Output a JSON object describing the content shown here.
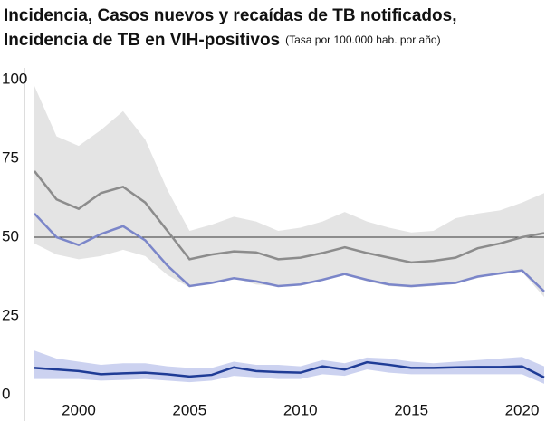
{
  "chart_data": {
    "type": "line",
    "title": [
      "Incidencia, Casos nuevos y recaídas de TB notificados,",
      "Incidencia de TB en VIH-positivos"
    ],
    "subtitle": "(Tasa por 100.000 hab. por año)",
    "x": [
      1998,
      1999,
      2000,
      2001,
      2002,
      2003,
      2004,
      2005,
      2006,
      2007,
      2008,
      2009,
      2010,
      2011,
      2012,
      2013,
      2014,
      2015,
      2016,
      2017,
      2018,
      2019,
      2020,
      2021
    ],
    "xlim": [
      1998,
      2021
    ],
    "xticks": [
      2000,
      2005,
      2010,
      2015,
      2020
    ],
    "ylim": [
      0,
      100
    ],
    "yticks": [
      0,
      25,
      50,
      75,
      100
    ],
    "hline": 50,
    "series": [
      {
        "color": "#8c8c8c",
        "band_color": "#e4e4e4",
        "values": [
          71,
          62,
          59,
          64,
          66,
          61,
          52,
          43,
          44.5,
          45.5,
          45.2,
          43,
          43.5,
          45,
          46.8,
          45,
          43.5,
          42,
          42.5,
          43.5,
          46.5,
          48,
          50,
          51.3
        ],
        "lower": [
          48,
          44.5,
          43,
          44,
          46,
          44,
          38,
          34,
          35.5,
          37,
          35,
          34.5,
          35,
          36.5,
          38,
          36,
          34.5,
          34,
          34.5,
          35.5,
          37,
          38.5,
          39,
          31
        ],
        "upper": [
          98,
          82,
          79,
          84,
          90,
          81,
          65,
          52,
          54,
          56.5,
          55,
          52,
          53,
          55,
          58,
          55,
          53,
          51.5,
          52,
          56,
          57.5,
          58.5,
          61,
          64
        ]
      },
      {
        "color": "#7b86c9",
        "values": [
          57.5,
          50,
          47.5,
          51,
          53.5,
          49,
          41,
          34.5,
          35.5,
          37,
          36,
          34.5,
          35,
          36.5,
          38.3,
          36.5,
          35,
          34.5,
          35,
          35.5,
          37.5,
          38.5,
          39.5,
          32.8
        ]
      },
      {
        "color": "#1f3c96",
        "band_color": "#ccd2f0",
        "values": [
          8.5,
          8,
          7.5,
          6.5,
          6.8,
          7,
          6.5,
          5.8,
          6.3,
          8.7,
          7.5,
          7.2,
          7,
          9,
          8,
          10.3,
          9.5,
          8.5,
          8.5,
          8.7,
          8.8,
          8.8,
          9,
          5.5
        ],
        "lower": [
          5,
          5,
          5,
          4.5,
          4.7,
          5,
          4.5,
          4,
          4.5,
          6,
          5.5,
          5,
          5,
          6.5,
          6,
          8,
          7,
          6.5,
          6.5,
          6.5,
          6.5,
          6.5,
          6.5,
          3.5
        ],
        "upper": [
          14,
          11.5,
          10.5,
          9.5,
          10,
          10,
          9,
          8.5,
          8.5,
          10.5,
          9.5,
          9.5,
          9,
          11,
          10,
          11.8,
          11.5,
          10.5,
          10,
          10.5,
          11,
          11.5,
          12,
          9
        ]
      }
    ]
  }
}
